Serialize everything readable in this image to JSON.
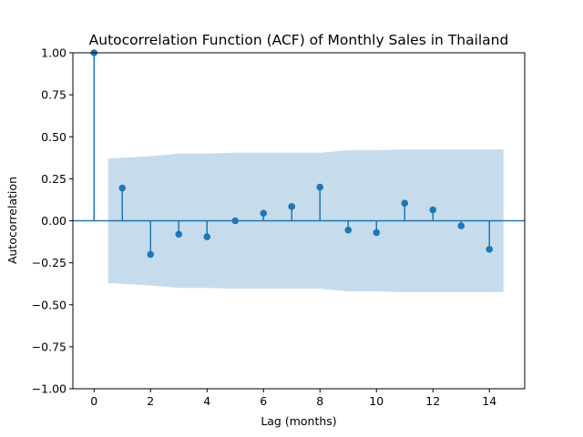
{
  "chart_data": {
    "type": "stem",
    "title": "Autocorrelation Function (ACF) of Monthly Sales in Thailand",
    "xlabel": "Lag (months)",
    "ylabel": "Autocorrelation",
    "xlim": [
      -0.75,
      15.25
    ],
    "ylim": [
      -1.0,
      1.0
    ],
    "xticks": [
      0,
      2,
      4,
      6,
      8,
      10,
      12,
      14
    ],
    "yticks": [
      -1.0,
      -0.75,
      -0.5,
      -0.25,
      0.0,
      0.25,
      0.5,
      0.75,
      1.0
    ],
    "ytick_labels": [
      "−1.00",
      "−0.75",
      "−0.50",
      "−0.25",
      "0.00",
      "0.25",
      "0.50",
      "0.75",
      "1.00"
    ],
    "lags": [
      0,
      1,
      2,
      3,
      4,
      5,
      6,
      7,
      8,
      9,
      10,
      11,
      12,
      13,
      14
    ],
    "values": [
      1.0,
      0.195,
      -0.2,
      -0.08,
      -0.095,
      0.0,
      0.045,
      0.085,
      0.2,
      -0.055,
      -0.07,
      0.105,
      0.065,
      -0.03,
      -0.17
    ],
    "confidence_band": {
      "x": [
        0.5,
        1,
        2,
        3,
        4,
        5,
        6,
        7,
        8,
        9,
        10,
        11,
        12,
        13,
        14,
        14.5
      ],
      "upper": [
        0.37,
        0.375,
        0.385,
        0.4,
        0.4,
        0.405,
        0.405,
        0.405,
        0.405,
        0.42,
        0.42,
        0.425,
        0.425,
        0.425,
        0.425,
        0.425
      ]
    },
    "colors": {
      "stem": "#1f77b4",
      "band": "#c6dcec",
      "zero_line": "#1f77b4"
    },
    "grid": false
  }
}
